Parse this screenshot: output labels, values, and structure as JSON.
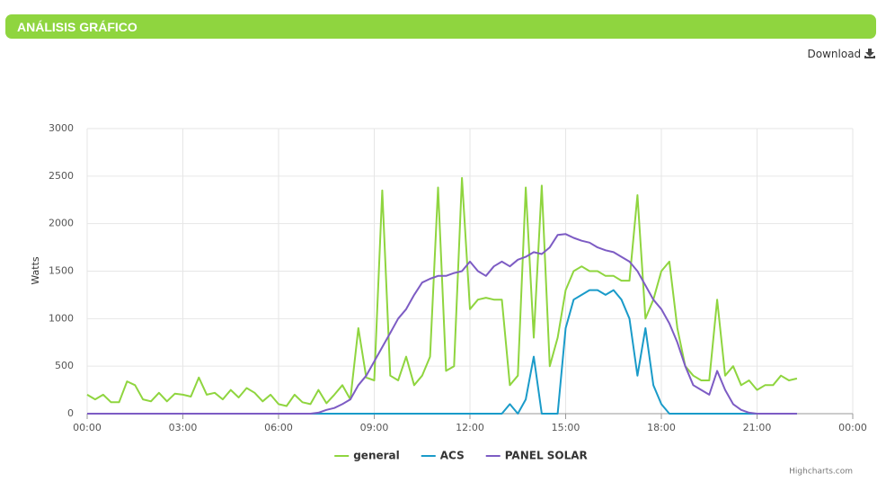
{
  "header": {
    "title": "ANÁLISIS GRÁFICO"
  },
  "download": "Download",
  "chart_data": {
    "type": "line",
    "y_label": "Watts",
    "credits": "Highcharts.com",
    "xlim": [
      0,
      24
    ],
    "xticks": [
      {
        "value": 0,
        "label": "00:00"
      },
      {
        "value": 3,
        "label": "03:00"
      },
      {
        "value": 6,
        "label": "06:00"
      },
      {
        "value": 9,
        "label": "09:00"
      },
      {
        "value": 12,
        "label": "12:00"
      },
      {
        "value": 15,
        "label": "15:00"
      },
      {
        "value": 18,
        "label": "18:00"
      },
      {
        "value": 21,
        "label": "21:00"
      },
      {
        "value": 24,
        "label": "00:00"
      }
    ],
    "ylim": [
      0,
      3000
    ],
    "yticks": [
      0,
      500,
      1000,
      1500,
      2000,
      2500,
      3000
    ],
    "grid": true,
    "legend": "bottom",
    "x": [
      0,
      0.25,
      0.5,
      0.75,
      1,
      1.25,
      1.5,
      1.75,
      2,
      2.25,
      2.5,
      2.75,
      3,
      3.25,
      3.5,
      3.75,
      4,
      4.25,
      4.5,
      4.75,
      5,
      5.25,
      5.5,
      5.75,
      6,
      6.25,
      6.5,
      6.75,
      7,
      7.25,
      7.5,
      7.75,
      8,
      8.25,
      8.5,
      8.75,
      9,
      9.25,
      9.5,
      9.75,
      10,
      10.25,
      10.5,
      10.75,
      11,
      11.25,
      11.5,
      11.75,
      12,
      12.25,
      12.5,
      12.75,
      13,
      13.25,
      13.5,
      13.75,
      14,
      14.25,
      14.5,
      14.75,
      15,
      15.25,
      15.5,
      15.75,
      16,
      16.25,
      16.5,
      16.75,
      17,
      17.25,
      17.5,
      17.75,
      18,
      18.25,
      18.5,
      18.75,
      19,
      19.25,
      19.5,
      19.75,
      20,
      20.25,
      20.5,
      20.75,
      21,
      21.25,
      21.5,
      21.75,
      22,
      22.25
    ],
    "series": [
      {
        "name": "general",
        "color": "#8fd53f",
        "values": [
          200,
          150,
          200,
          120,
          120,
          340,
          300,
          150,
          130,
          220,
          130,
          210,
          200,
          180,
          380,
          200,
          220,
          150,
          250,
          170,
          270,
          220,
          130,
          200,
          100,
          80,
          200,
          120,
          100,
          250,
          110,
          200,
          300,
          150,
          900,
          380,
          350,
          2350,
          400,
          350,
          600,
          300,
          400,
          600,
          2380,
          450,
          500,
          2480,
          1100,
          1200,
          1220,
          1200,
          1200,
          300,
          400,
          2380,
          800,
          2400,
          500,
          800,
          1300,
          1500,
          1550,
          1500,
          1500,
          1450,
          1450,
          1400,
          1400,
          2300,
          1000,
          1200,
          1500,
          1600,
          900,
          500,
          400,
          350,
          350,
          1200,
          400,
          500,
          300,
          350,
          250,
          300,
          300,
          400,
          350,
          370
        ]
      },
      {
        "name": "ACS",
        "color": "#1a9bc9",
        "values": [
          0,
          0,
          0,
          0,
          0,
          0,
          0,
          0,
          0,
          0,
          0,
          0,
          0,
          0,
          0,
          0,
          0,
          0,
          0,
          0,
          0,
          0,
          0,
          0,
          0,
          0,
          0,
          0,
          0,
          0,
          0,
          0,
          0,
          0,
          0,
          0,
          0,
          0,
          0,
          0,
          0,
          0,
          0,
          0,
          0,
          0,
          0,
          0,
          0,
          0,
          0,
          0,
          0,
          100,
          0,
          150,
          600,
          0,
          0,
          0,
          900,
          1200,
          1250,
          1300,
          1300,
          1250,
          1300,
          1200,
          1000,
          400,
          900,
          300,
          100,
          0,
          0,
          0,
          0,
          0,
          0,
          0,
          0,
          0,
          0,
          0,
          0,
          0,
          0,
          0,
          0,
          0
        ]
      },
      {
        "name": "PANEL SOLAR",
        "color": "#7d5cc4",
        "values": [
          0,
          0,
          0,
          0,
          0,
          0,
          0,
          0,
          0,
          0,
          0,
          0,
          0,
          0,
          0,
          0,
          0,
          0,
          0,
          0,
          0,
          0,
          0,
          0,
          0,
          0,
          0,
          0,
          0,
          10,
          40,
          60,
          100,
          150,
          300,
          400,
          550,
          700,
          850,
          1000,
          1100,
          1250,
          1380,
          1420,
          1450,
          1450,
          1480,
          1500,
          1600,
          1500,
          1450,
          1550,
          1600,
          1550,
          1620,
          1650,
          1700,
          1680,
          1750,
          1880,
          1890,
          1850,
          1820,
          1800,
          1750,
          1720,
          1700,
          1650,
          1600,
          1500,
          1350,
          1200,
          1100,
          950,
          750,
          500,
          300,
          250,
          200,
          450,
          250,
          100,
          40,
          10,
          0,
          0,
          0,
          0,
          0,
          0
        ]
      }
    ]
  }
}
